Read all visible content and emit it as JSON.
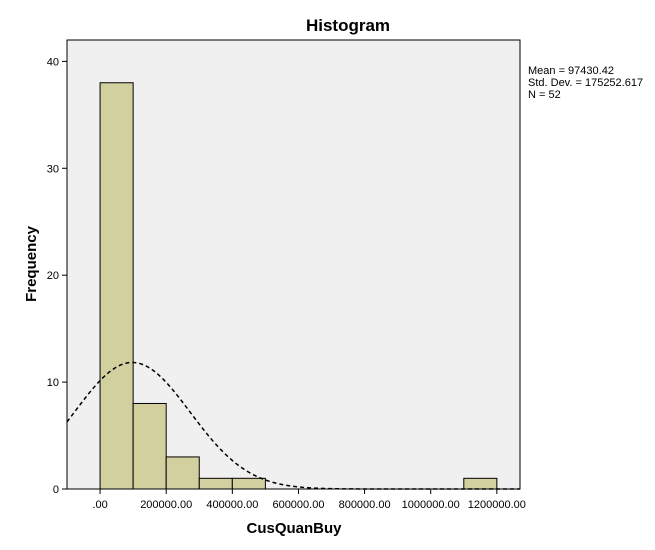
{
  "chart_data": {
    "type": "bar",
    "title": "Histogram",
    "xlabel": "CusQuanBuy",
    "ylabel": "Frequency",
    "bin_width": 100000,
    "bins": [
      {
        "start": 0,
        "end": 100000,
        "count": 38
      },
      {
        "start": 100000,
        "end": 200000,
        "count": 8
      },
      {
        "start": 200000,
        "end": 300000,
        "count": 3
      },
      {
        "start": 300000,
        "end": 400000,
        "count": 1
      },
      {
        "start": 400000,
        "end": 500000,
        "count": 1
      },
      {
        "start": 1100000,
        "end": 1200000,
        "count": 1
      }
    ],
    "xlim": [
      -100000,
      1270000
    ],
    "ylim": [
      0,
      42
    ],
    "x_ticks": [
      {
        "value": 0,
        "label": ".00"
      },
      {
        "value": 200000,
        "label": "200000.00"
      },
      {
        "value": 400000,
        "label": "400000.00"
      },
      {
        "value": 600000,
        "label": "600000.00"
      },
      {
        "value": 800000,
        "label": "800000.00"
      },
      {
        "value": 1000000,
        "label": "1000000.00"
      },
      {
        "value": 1200000,
        "label": "1200000.00"
      }
    ],
    "y_ticks": [
      {
        "value": 0,
        "label": "0"
      },
      {
        "value": 10,
        "label": "10"
      },
      {
        "value": 20,
        "label": "20"
      },
      {
        "value": 30,
        "label": "30"
      },
      {
        "value": 40,
        "label": "40"
      }
    ],
    "normal_curve": {
      "mean": 97430.42,
      "std": 175252.617,
      "n": 52,
      "style": "dashed"
    },
    "stats": {
      "mean": "Mean = 97430.42",
      "std": "Std. Dev. = 175252.617",
      "n": "N = 52"
    },
    "grid": false,
    "colors": {
      "bar_fill": "#d3d09f",
      "bar_stroke": "#000000",
      "plot_bg": "#f0f0f0",
      "curve": "#000000"
    }
  }
}
